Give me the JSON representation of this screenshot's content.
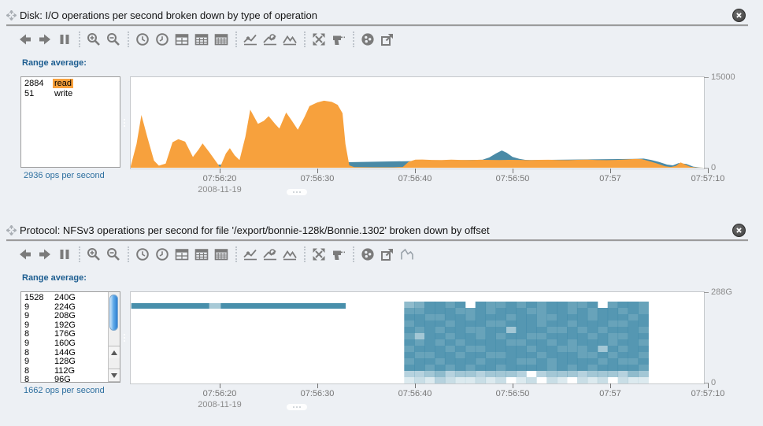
{
  "colors": {
    "background": "#edf0f4",
    "read_orange": "#f7a13d",
    "write_teal": "#4a8aa6",
    "heatmap_base_rgb": "62,137,167",
    "highlight_orange": "#f9a13c",
    "icon_gray": "#7b7b7b",
    "axis_gray": "#8a8a8a"
  },
  "panels": [
    {
      "title": "Disk: I/O operations per second broken down by type of operation",
      "toolbar": {
        "icons": [
          "back",
          "forward",
          "pause",
          "sep",
          "zoom-in",
          "zoom-out",
          "sep",
          "clock-back",
          "clock-forward",
          "table-hour",
          "table-minute",
          "table-second",
          "sep",
          "line-minimum",
          "line-average",
          "mountains-maximum",
          "sep",
          "expand",
          "drilldown",
          "sep",
          "sphere",
          "export"
        ]
      },
      "legend": {
        "label": "Range average:",
        "items": [
          {
            "value": "2884",
            "name": "read",
            "highlight": true
          },
          {
            "value": "51",
            "name": "write",
            "highlight": false
          }
        ],
        "summary": "2936 ops per second"
      },
      "y_axis": {
        "top": "15000",
        "bottom": "0"
      },
      "x_axis": {
        "date": "2008-11-19",
        "ticks": [
          {
            "label": "07:56:20",
            "f": 0.157
          },
          {
            "label": "07:56:30",
            "f": 0.327
          },
          {
            "label": "07:56:40",
            "f": 0.497
          },
          {
            "label": "07:56:50",
            "f": 0.668
          },
          {
            "label": "07:57",
            "f": 0.838
          },
          {
            "label": "07:57:10",
            "f": 1.008
          }
        ]
      },
      "chart_data": {
        "type": "area",
        "stacked": true,
        "title": "Disk I/O ops per second by type",
        "x_start": "07:56:11",
        "x_end": "07:57:10",
        "x_span_seconds": 59,
        "ylim": [
          0,
          15000
        ],
        "legend_position": "left",
        "grid": false,
        "series": [
          {
            "name": "read",
            "color": "#f7a13d",
            "points": [
              [
                0,
                250
              ],
              [
                0.6,
                4000
              ],
              [
                1.1,
                8900
              ],
              [
                1.7,
                5200
              ],
              [
                2.4,
                1200
              ],
              [
                2.9,
                350
              ],
              [
                3.6,
                700
              ],
              [
                4.3,
                4300
              ],
              [
                4.9,
                4800
              ],
              [
                5.6,
                4400
              ],
              [
                6.4,
                1800
              ],
              [
                7.0,
                3100
              ],
              [
                7.4,
                4100
              ],
              [
                8.1,
                2600
              ],
              [
                9.2,
                80
              ],
              [
                9.8,
                2400
              ],
              [
                10.2,
                3300
              ],
              [
                10.7,
                2100
              ],
              [
                11.2,
                1300
              ],
              [
                11.8,
                5200
              ],
              [
                12.3,
                9800
              ],
              [
                13.1,
                7400
              ],
              [
                13.7,
                7900
              ],
              [
                14.2,
                8700
              ],
              [
                14.9,
                7300
              ],
              [
                15.3,
                6600
              ],
              [
                16.0,
                9300
              ],
              [
                16.6,
                7900
              ],
              [
                17.2,
                6400
              ],
              [
                17.9,
                8600
              ],
              [
                18.4,
                10400
              ],
              [
                19.2,
                11000
              ],
              [
                19.9,
                11300
              ],
              [
                20.7,
                11100
              ],
              [
                21.3,
                10600
              ],
              [
                21.8,
                9200
              ],
              [
                22.1,
                4000
              ],
              [
                22.5,
                400
              ],
              [
                23.0,
                100
              ],
              [
                25,
                60
              ],
              [
                27,
                70
              ],
              [
                28.0,
                120
              ],
              [
                28.6,
                1000
              ],
              [
                29.3,
                1350
              ],
              [
                30,
                1380
              ],
              [
                31,
                1320
              ],
              [
                32,
                1300
              ],
              [
                33,
                1360
              ],
              [
                34,
                1310
              ],
              [
                35,
                1290
              ],
              [
                36,
                1340
              ],
              [
                37,
                1320
              ],
              [
                38,
                1300
              ],
              [
                39,
                1330
              ],
              [
                40,
                1310
              ],
              [
                41,
                1280
              ],
              [
                42,
                1330
              ],
              [
                43,
                1340
              ],
              [
                44,
                1300
              ],
              [
                45,
                1280
              ],
              [
                46,
                1330
              ],
              [
                47,
                1350
              ],
              [
                48,
                1300
              ],
              [
                49,
                1280
              ],
              [
                50,
                1320
              ],
              [
                51,
                1400
              ],
              [
                52.0,
                1500
              ],
              [
                52.6,
                1450
              ],
              [
                53.4,
                1100
              ],
              [
                54.2,
                700
              ],
              [
                55.0,
                250
              ],
              [
                55.6,
                120
              ],
              [
                56.1,
                300
              ],
              [
                56.6,
                900
              ],
              [
                57.0,
                600
              ],
              [
                57.6,
                150
              ],
              [
                58.2,
                40
              ],
              [
                59,
                0
              ]
            ]
          },
          {
            "name": "write",
            "color": "#4a8aa6",
            "points": [
              [
                0,
                0
              ],
              [
                36.2,
                0
              ],
              [
                36.9,
                400
              ],
              [
                37.6,
                1100
              ],
              [
                38.2,
                1600
              ],
              [
                38.7,
                1200
              ],
              [
                39.3,
                500
              ],
              [
                40.0,
                180
              ],
              [
                40.6,
                40
              ],
              [
                41.2,
                0
              ],
              [
                52.0,
                0
              ],
              [
                52.8,
                180
              ],
              [
                53.6,
                300
              ],
              [
                54.4,
                380
              ],
              [
                55.2,
                330
              ],
              [
                55.8,
                200
              ],
              [
                56.4,
                120
              ],
              [
                57.2,
                180
              ],
              [
                57.9,
                90
              ],
              [
                58.6,
                20
              ],
              [
                59,
                0
              ]
            ]
          }
        ]
      }
    },
    {
      "title": "Protocol: NFSv3 operations per second for file '/export/bonnie-128k/Bonnie.1302' broken down by offset",
      "toolbar": {
        "icons": [
          "back",
          "forward",
          "pause",
          "sep",
          "zoom-in",
          "zoom-out",
          "sep",
          "clock-back",
          "clock-forward",
          "table-hour",
          "table-minute",
          "table-second",
          "sep",
          "line-minimum",
          "line-average",
          "mountains-maximum",
          "sep",
          "expand",
          "drilldown",
          "sep",
          "sphere",
          "export",
          "outline"
        ]
      },
      "legend": {
        "label": "Range average:",
        "items": [
          {
            "value": "1528",
            "name": "240G",
            "highlight": false
          },
          {
            "value": "9",
            "name": "224G",
            "highlight": false
          },
          {
            "value": "9",
            "name": "208G",
            "highlight": false
          },
          {
            "value": "9",
            "name": "192G",
            "highlight": false
          },
          {
            "value": "8",
            "name": "176G",
            "highlight": false
          },
          {
            "value": "9",
            "name": "160G",
            "highlight": false
          },
          {
            "value": "8",
            "name": "144G",
            "highlight": false
          },
          {
            "value": "9",
            "name": "128G",
            "highlight": false
          },
          {
            "value": "8",
            "name": "112G",
            "highlight": false
          },
          {
            "value": "8",
            "name": "96G",
            "highlight": false
          }
        ],
        "summary": "1662 ops per second",
        "has_scrollbar": true
      },
      "y_axis": {
        "top": "288G",
        "bottom": "0"
      },
      "x_axis": {
        "date": "2008-11-19",
        "ticks": [
          {
            "label": "07:56:20",
            "f": 0.157
          },
          {
            "label": "07:56:30",
            "f": 0.327
          },
          {
            "label": "07:56:40",
            "f": 0.497
          },
          {
            "label": "07:56:50",
            "f": 0.668
          },
          {
            "label": "07:57",
            "f": 0.838
          },
          {
            "label": "07:57:10",
            "f": 1.008
          }
        ]
      },
      "chart_data": {
        "type": "heatmap",
        "title": "NFSv3 ops per second by file offset",
        "x_start": "07:56:11",
        "x_end": "07:57:10",
        "x_span_seconds": 59,
        "ylim": [
          "0",
          "288G"
        ],
        "bar": {
          "offset": "240G",
          "time_from": "07:56:11",
          "time_to": "07:56:33",
          "segments": [
            {
              "f0": 0.001,
              "f1": 0.137,
              "shade": "dark"
            },
            {
              "f0": 0.137,
              "f1": 0.157,
              "shade": "light"
            },
            {
              "f0": 0.157,
              "f1": 0.375,
              "shade": "dark"
            }
          ]
        },
        "block": {
          "time_from": "07:56:39",
          "time_to": "07:57:04",
          "f0": 0.477,
          "f1": 0.903,
          "offset_top": "256G",
          "offset_bottom": "0",
          "row_band": "16G per row, top row = 240G-256G",
          "rows": [
            "568878087787878877807887",
            "778887787888778878788787",
            "887788788878877888788878",
            "788878887788878878887788",
            "878788778848887787878887",
            "748878878788778888787788",
            "878787888877887878887887",
            "788878778888788777848788",
            "877887887788878887787887",
            "788788878887787888878778",
            "887878788788887878788887",
            "334534434443034443444354",
            "121321121201202102120211"
          ]
        }
      }
    }
  ]
}
